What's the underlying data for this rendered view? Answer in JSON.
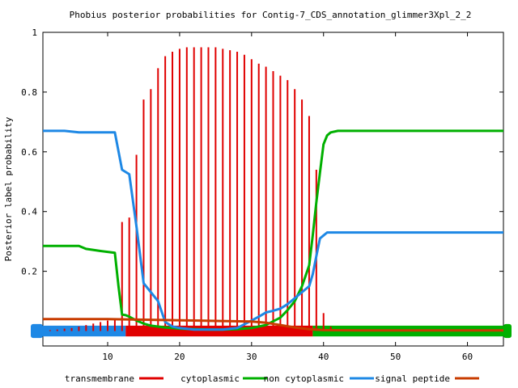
{
  "chart_data": {
    "type": "line",
    "title": "Phobius posterior probabilities for Contig-7_CDS_annotation_glimmer3Xpl_2_2",
    "xlabel": "",
    "ylabel": "Posterior label probability",
    "xlim": [
      1,
      65
    ],
    "ylim": [
      -0.05,
      1
    ],
    "x_ticks": [
      10,
      20,
      30,
      40,
      50,
      60
    ],
    "y_ticks": [
      0.2,
      0.4,
      0.6,
      0.8,
      1
    ],
    "y_tick_labels": [
      "0.2",
      "0.4",
      "0.6",
      "0.8",
      "1"
    ],
    "grid": false,
    "legend_position": "bottom",
    "colors": {
      "transmembrane": "#e00000",
      "cytoplasmic": "#00b000",
      "non_cytoplasmic": "#1e88e5",
      "signal_peptide": "#c83c00"
    },
    "legend": [
      {
        "label": "transmembrane",
        "color": "#e00000"
      },
      {
        "label": "cytoplasmic",
        "color": "#00b000"
      },
      {
        "label": "non cytoplasmic",
        "color": "#1e88e5"
      },
      {
        "label": "signal peptide",
        "color": "#c83c00"
      }
    ],
    "series": [
      {
        "name": "transmembrane",
        "style": "impulses",
        "x": [
          2,
          3,
          4,
          5,
          6,
          7,
          8,
          9,
          10,
          11,
          12,
          13,
          14,
          15,
          16,
          17,
          18,
          19,
          20,
          21,
          22,
          23,
          24,
          25,
          26,
          27,
          28,
          29,
          30,
          31,
          32,
          33,
          34,
          35,
          36,
          37,
          38,
          39,
          40,
          41
        ],
        "values": [
          0.003,
          0.005,
          0.008,
          0.01,
          0.015,
          0.02,
          0.025,
          0.03,
          0.035,
          0.04,
          0.365,
          0.38,
          0.59,
          0.775,
          0.81,
          0.88,
          0.92,
          0.935,
          0.945,
          0.95,
          0.95,
          0.95,
          0.95,
          0.95,
          0.945,
          0.94,
          0.935,
          0.925,
          0.91,
          0.895,
          0.885,
          0.87,
          0.855,
          0.84,
          0.81,
          0.775,
          0.72,
          0.54,
          0.06,
          0.015
        ]
      },
      {
        "name": "cytoplasmic",
        "x": [
          1,
          4,
          6,
          7,
          9,
          10,
          11,
          11.5,
          12,
          12.5,
          13,
          14,
          15,
          16,
          17,
          18,
          19,
          20,
          22,
          24,
          26,
          28,
          30,
          32,
          34,
          35,
          36,
          37,
          38,
          38.5,
          39,
          39.5,
          40,
          40.5,
          41,
          42,
          45,
          50,
          55,
          60,
          65
        ],
        "values": [
          0.285,
          0.285,
          0.285,
          0.275,
          0.268,
          0.265,
          0.262,
          0.15,
          0.055,
          0.053,
          0.048,
          0.035,
          0.025,
          0.018,
          0.015,
          0.012,
          0.01,
          0.008,
          0.006,
          0.005,
          0.005,
          0.006,
          0.01,
          0.02,
          0.045,
          0.07,
          0.1,
          0.15,
          0.22,
          0.32,
          0.43,
          0.53,
          0.625,
          0.655,
          0.665,
          0.67,
          0.67,
          0.67,
          0.67,
          0.67,
          0.67
        ]
      },
      {
        "name": "non cytoplasmic",
        "x": [
          1,
          4,
          6,
          8,
          10,
          11,
          12,
          13,
          14,
          15,
          16,
          17,
          18,
          19,
          20,
          22,
          24,
          26,
          28,
          30,
          31,
          32,
          33,
          34,
          35,
          36,
          37,
          38,
          38.5,
          39,
          39.5,
          40,
          40.5,
          41,
          45,
          50,
          55,
          60,
          65
        ],
        "values": [
          0.67,
          0.67,
          0.665,
          0.665,
          0.665,
          0.665,
          0.54,
          0.525,
          0.35,
          0.16,
          0.13,
          0.1,
          0.03,
          0.015,
          0.01,
          0.005,
          0.005,
          0.005,
          0.01,
          0.035,
          0.048,
          0.062,
          0.068,
          0.075,
          0.09,
          0.11,
          0.13,
          0.15,
          0.19,
          0.25,
          0.31,
          0.32,
          0.33,
          0.33,
          0.33,
          0.33,
          0.33,
          0.33,
          0.33
        ]
      },
      {
        "name": "signal peptide",
        "x": [
          1,
          5,
          10,
          15,
          20,
          25,
          30,
          32,
          34,
          36,
          38,
          40,
          45,
          50,
          55,
          60,
          65
        ],
        "values": [
          0.04,
          0.04,
          0.04,
          0.038,
          0.036,
          0.034,
          0.032,
          0.028,
          0.02,
          0.012,
          0.006,
          0.003,
          0.002,
          0.002,
          0.002,
          0.002,
          0.002
        ]
      }
    ],
    "topology_bar": [
      {
        "label": "non cytoplasmic",
        "start": 1,
        "end": 12.5,
        "color": "#1e88e5"
      },
      {
        "label": "transmembrane",
        "start": 12.5,
        "end": 38.5,
        "color": "#e00000"
      },
      {
        "label": "cytoplasmic",
        "start": 38.5,
        "end": 65,
        "color": "#00b000"
      }
    ]
  }
}
